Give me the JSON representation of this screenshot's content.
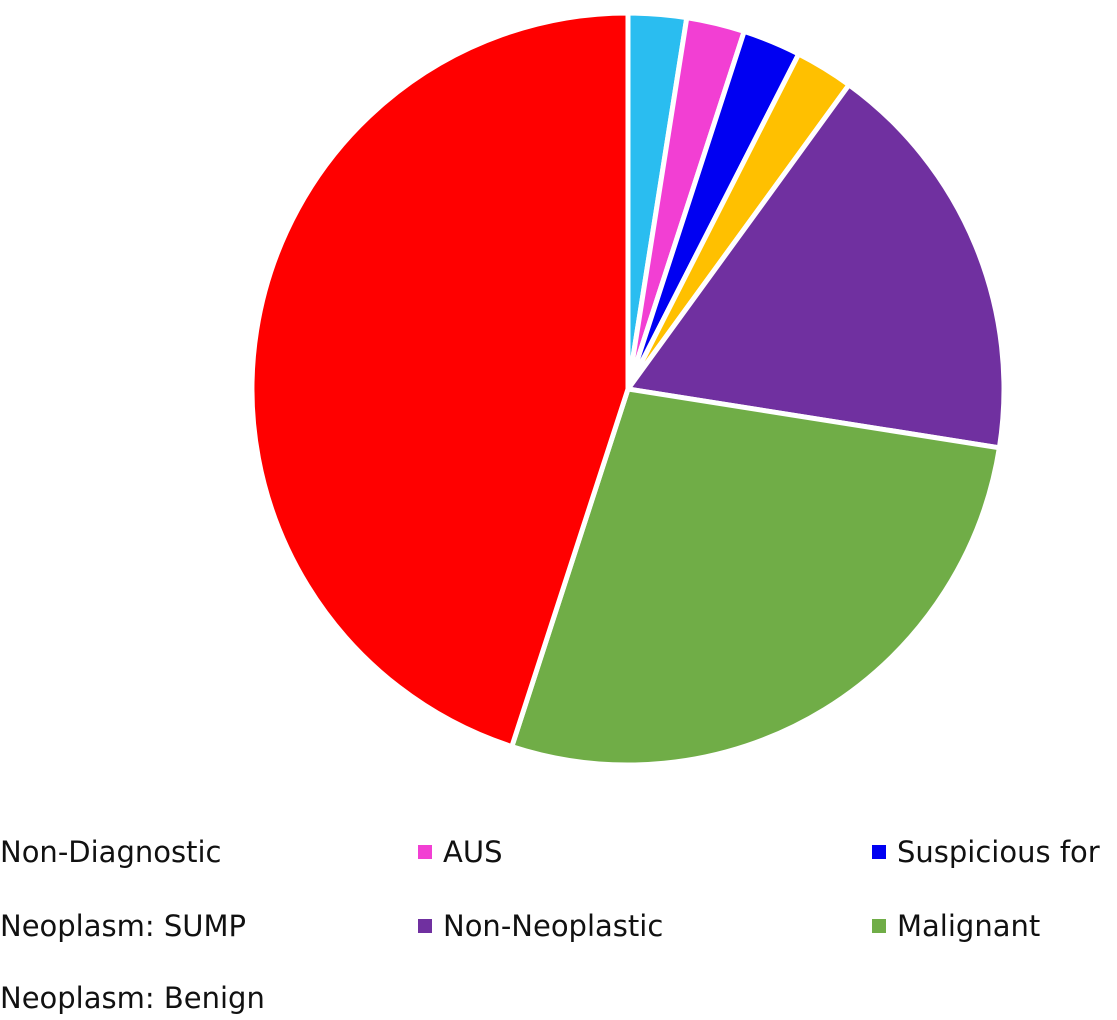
{
  "chart_data": {
    "type": "pie",
    "title": "",
    "slices": [
      {
        "label": "Non-Diagnostic",
        "value": 2.5,
        "color": "#2ABDF0"
      },
      {
        "label": "AUS",
        "value": 2.5,
        "color": "#F23FD3"
      },
      {
        "label": "Suspicious for",
        "value": 2.5,
        "color": "#0000F2"
      },
      {
        "label": "Neoplasm: SUMP",
        "value": 2.5,
        "color": "#FFC000"
      },
      {
        "label": "Non-Neoplastic",
        "value": 17.5,
        "color": "#7030A0"
      },
      {
        "label": "Malignant",
        "value": 27.5,
        "color": "#70AD47"
      },
      {
        "label": "Neoplasm: Benign",
        "value": 45,
        "color": "#FF0000"
      }
    ],
    "legend": {
      "placement": "bottom",
      "entries": [
        {
          "label": "Non-Diagnostic",
          "color": "#2ABDF0"
        },
        {
          "label": "AUS",
          "color": "#F23FD3"
        },
        {
          "label": "Suspicious for",
          "color": "#0000F2"
        },
        {
          "label": "Neoplasm: SUMP",
          "color": "#FFC000"
        },
        {
          "label": "Non-Neoplastic",
          "color": "#7030A0"
        },
        {
          "label": "Malignant",
          "color": "#70AD47"
        },
        {
          "label": "Neoplasm: Benign",
          "color": "#FF0000"
        }
      ]
    }
  }
}
